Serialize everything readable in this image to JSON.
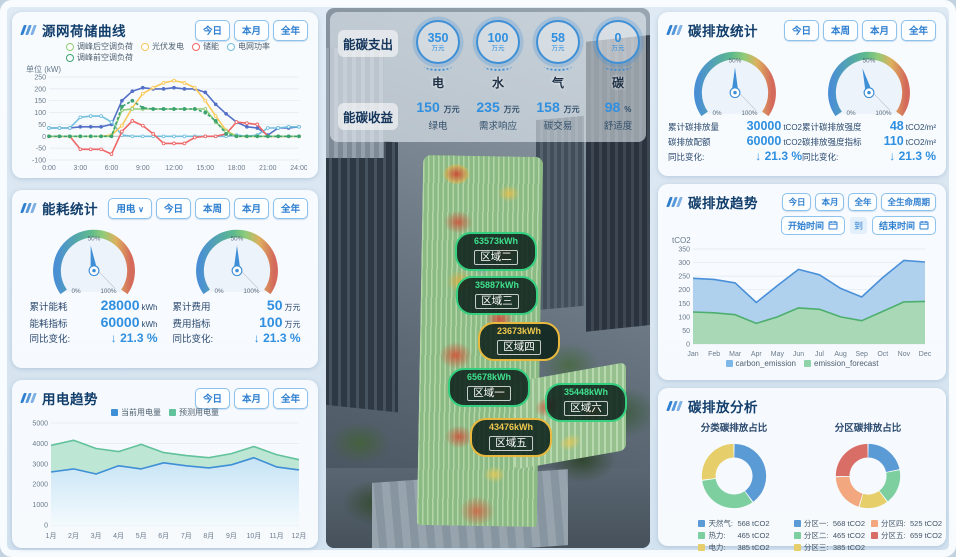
{
  "page": {
    "accent": "#2e7fd0",
    "panel_bg": "#fbfdff",
    "title_color": "#123e6b",
    "value_color": "#2f8fe0"
  },
  "panels": {
    "source_curve": {
      "title": "源网荷储曲线",
      "buttons": [
        "今日",
        "本月",
        "全年"
      ]
    },
    "energy_stats": {
      "title": "能耗统计",
      "dropdown": "用电",
      "buttons": [
        "今日",
        "本周",
        "本月",
        "全年"
      ],
      "gauges": [
        {
          "percent": 47,
          "min": "0%",
          "mid": "50%",
          "max": "100%",
          "rows": [
            {
              "label": "累计能耗",
              "value": "28000",
              "unit": "kWh"
            },
            {
              "label": "能耗指标",
              "value": "60000",
              "unit": "kWh"
            }
          ],
          "change_label": "同比变化:",
          "change_value": "21.3 %"
        },
        {
          "percent": 50,
          "min": "0%",
          "mid": "50%",
          "max": "100%",
          "rows": [
            {
              "label": "累计费用",
              "value": "50",
              "unit": "万元"
            },
            {
              "label": "费用指标",
              "value": "100",
              "unit": "万元"
            }
          ],
          "change_label": "同比变化:",
          "change_value": "21.3 %"
        }
      ]
    },
    "power_trend": {
      "title": "用电趋势",
      "buttons": [
        "今日",
        "本月",
        "全年"
      ]
    },
    "carbon_stats": {
      "title": "碳排放统计",
      "buttons": [
        "今日",
        "本周",
        "本月",
        "全年"
      ],
      "gauges": [
        {
          "percent": 50,
          "min": "0%",
          "mid": "50%",
          "max": "100%",
          "rows": [
            {
              "label": "累计碳排放量",
              "value": "30000",
              "unit": "tCO2"
            },
            {
              "label": "碳排放配额",
              "value": "60000",
              "unit": "tCO2"
            }
          ],
          "change_label": "同比变化:",
          "change_value": "21.3 %"
        },
        {
          "percent": 44,
          "min": "0%",
          "mid": "50%",
          "max": "100%",
          "rows": [
            {
              "label": "累计碳排放强度",
              "value": "48",
              "unit": "tCO2/m²"
            },
            {
              "label": "碳排放强度指标",
              "value": "110",
              "unit": "tCO2/m²"
            }
          ],
          "change_label": "同比变化:",
          "change_value": "21.3 %"
        }
      ]
    },
    "carbon_trend": {
      "title": "碳排放趋势",
      "buttons": [
        "今日",
        "本月",
        "全年",
        "全生命周期"
      ],
      "start_label": "开始时间",
      "to_label": "到",
      "end_label": "结束时间"
    },
    "carbon_analysis": {
      "title": "碳排放分析"
    }
  },
  "center": {
    "expense_label": "能碳支出",
    "expense_items": [
      {
        "value": "350",
        "unit": "万元",
        "label": "电"
      },
      {
        "value": "100",
        "unit": "万元",
        "label": "水"
      },
      {
        "value": "58",
        "unit": "万元",
        "label": "气"
      },
      {
        "value": "0",
        "unit": "万元",
        "label": "碳"
      }
    ],
    "income_label": "能碳收益",
    "income_items": [
      {
        "value": "150",
        "unit": "万元",
        "label": "绿电"
      },
      {
        "value": "235",
        "unit": "万元",
        "label": "需求响应"
      },
      {
        "value": "158",
        "unit": "万元",
        "label": "碳交易"
      },
      {
        "value": "98",
        "unit": "%",
        "label": "舒适度"
      }
    ],
    "zones": [
      {
        "value": "63573kWh",
        "name": "区域二",
        "type": "green"
      },
      {
        "value": "35887kWh",
        "name": "区域三",
        "type": "green"
      },
      {
        "value": "23673kWh",
        "name": "区域四",
        "type": "yellow"
      },
      {
        "value": "65678kWh",
        "name": "区域一",
        "type": "green"
      },
      {
        "value": "35448kWh",
        "name": "区域六",
        "type": "green"
      },
      {
        "value": "43476kWh",
        "name": "区域五",
        "type": "yellow"
      }
    ]
  },
  "chart_data": [
    {
      "id": "source_curve",
      "type": "line",
      "unit_label": "单位 (kW)",
      "x_tick_labels": [
        "0:00",
        "3:00",
        "6:00",
        "9:00",
        "12:00",
        "15:00",
        "18:00",
        "21:00",
        "24:00"
      ],
      "ylim": [
        -100,
        250
      ],
      "ystep": 50,
      "grid": true,
      "legend_position": "top",
      "legend": [
        {
          "label": "调峰后空调负荷",
          "color": "#91cc75"
        },
        {
          "label": "光伏发电",
          "color": "#fac858"
        },
        {
          "label": "储能",
          "color": "#ee6666"
        },
        {
          "label": "电网功率",
          "color": "#73c0de"
        },
        {
          "label": "调峰前空调负荷",
          "color": "#3ba272"
        }
      ],
      "series": [
        {
          "name": "",
          "color": "#5470c6",
          "filled": true,
          "values": [
            35,
            35,
            35,
            40,
            40,
            40,
            50,
            150,
            190,
            205,
            200,
            200,
            205,
            200,
            200,
            185,
            135,
            95,
            60,
            40,
            35,
            5,
            35,
            35,
            40
          ]
        },
        {
          "name": "电网功率",
          "color": "#73c0de",
          "values": [
            35,
            35,
            35,
            80,
            85,
            85,
            60,
            5,
            0,
            0,
            0,
            0,
            0,
            0,
            0,
            0,
            0,
            0,
            5,
            0,
            5,
            35,
            35,
            40,
            40
          ]
        },
        {
          "name": "光伏发电",
          "color": "#fac858",
          "values": [
            0,
            0,
            0,
            0,
            0,
            0,
            5,
            45,
            120,
            180,
            205,
            225,
            235,
            225,
            205,
            150,
            85,
            25,
            0,
            0,
            0,
            0,
            0,
            0,
            0
          ]
        },
        {
          "name": "储能",
          "color": "#ee6666",
          "values": [
            0,
            0,
            0,
            -55,
            -55,
            -55,
            -75,
            20,
            65,
            45,
            10,
            -30,
            -30,
            -30,
            -5,
            0,
            0,
            10,
            60,
            55,
            50,
            0,
            0,
            0,
            0
          ]
        },
        {
          "name": "调峰后空调负荷",
          "color": "#91cc75",
          "values": [
            0,
            0,
            0,
            0,
            0,
            0,
            0,
            110,
            115,
            115,
            115,
            115,
            115,
            115,
            115,
            115,
            60,
            20,
            0,
            0,
            0,
            0,
            0,
            0,
            0
          ]
        },
        {
          "name": "调峰前空调负荷",
          "color": "#3ba272",
          "dash": true,
          "filled": true,
          "values": [
            0,
            0,
            0,
            0,
            0,
            0,
            0,
            125,
            150,
            120,
            115,
            115,
            115,
            115,
            115,
            100,
            65,
            10,
            0,
            0,
            0,
            0,
            0,
            0,
            0
          ]
        }
      ]
    },
    {
      "id": "power_trend",
      "type": "area",
      "categories": [
        "1月",
        "2月",
        "3月",
        "4月",
        "5月",
        "6月",
        "7月",
        "8月",
        "9月",
        "10月",
        "11月",
        "12月"
      ],
      "ylim": [
        0,
        5000
      ],
      "ystep": 1000,
      "grid": true,
      "legend_position": "top",
      "legend": [
        {
          "label": "当前用电量",
          "color": "#3f8fd6"
        },
        {
          "label": "预测用电量",
          "color": "#62c29b"
        }
      ],
      "series": [
        {
          "name": "预测用电量",
          "color": "#62c29b",
          "fill": "#b9e4d0",
          "values": [
            3900,
            4150,
            3750,
            3600,
            3950,
            3550,
            3400,
            3300,
            3500,
            3850,
            3450,
            3200
          ]
        },
        {
          "name": "当前用电量",
          "color": "#3f8fd6",
          "fill_gradient": [
            "#c6e3f5",
            "#f3fafd"
          ],
          "values": [
            2600,
            2750,
            2500,
            2900,
            2750,
            3050,
            2900,
            2800,
            2950,
            3300,
            2850,
            2700
          ]
        }
      ]
    },
    {
      "id": "carbon_trend",
      "type": "area",
      "ylabel": "tCO2",
      "categories": [
        "Jan",
        "Feb",
        "Mar",
        "Apr",
        "May",
        "Jun",
        "Jul",
        "Aug",
        "Sep",
        "Oct",
        "Nov",
        "Dec"
      ],
      "ylim": [
        0,
        350
      ],
      "ystep": 50,
      "grid": true,
      "legend_position": "bottom",
      "legend": [
        {
          "label": "carbon_emission",
          "color": "#7db8e8"
        },
        {
          "label": "emission_forecast",
          "color": "#8fd4a8"
        }
      ],
      "series": [
        {
          "name": "carbon_emission",
          "color": "#4a90d9",
          "fill": "#a9cdec",
          "values": [
            242,
            238,
            225,
            153,
            215,
            275,
            255,
            205,
            173,
            245,
            308,
            302
          ]
        },
        {
          "name": "emission_forecast",
          "color": "#4daf6e",
          "fill": "#a8d8b2",
          "values": [
            118,
            115,
            108,
            76,
            100,
            133,
            128,
            100,
            86,
            120,
            155,
            157
          ]
        }
      ]
    },
    {
      "id": "category_donut",
      "type": "pie",
      "title": "分类碳排放占比",
      "unit": "tCO2",
      "items": [
        {
          "label": "天然气",
          "value": 568,
          "color": "#5b9bd5"
        },
        {
          "label": "热力",
          "value": 465,
          "color": "#7ecf9f"
        },
        {
          "label": "电力",
          "value": 385,
          "color": "#e6cf6a"
        }
      ]
    },
    {
      "id": "zone_donut",
      "type": "pie",
      "title": "分区碳排放占比",
      "unit": "tCO2",
      "items": [
        {
          "label": "分区一",
          "value": 568,
          "color": "#5b9bd5"
        },
        {
          "label": "分区二",
          "value": 465,
          "color": "#7ecf9f"
        },
        {
          "label": "分区三",
          "value": 385,
          "color": "#e6cf6a"
        },
        {
          "label": "分区四",
          "value": 525,
          "color": "#f2a77e"
        },
        {
          "label": "分区五",
          "value": 659,
          "color": "#d96e66"
        }
      ]
    }
  ]
}
